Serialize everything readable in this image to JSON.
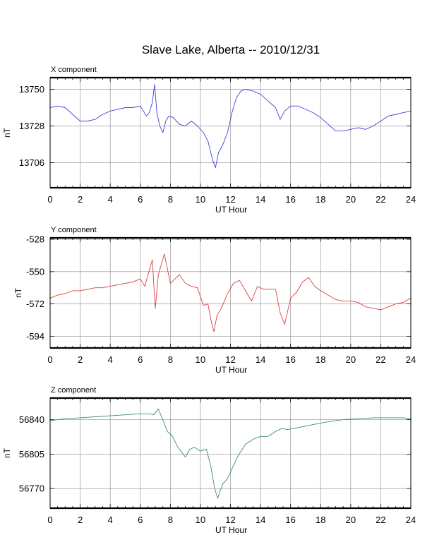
{
  "title": "Slave Lake, Alberta -- 2010/12/31",
  "chart_data": [
    {
      "type": "line",
      "panel_label": "X component",
      "xlabel": "UT Hour",
      "ylabel": "nT",
      "xlim": [
        0,
        24
      ],
      "ylim": [
        13691,
        13757
      ],
      "grid": true,
      "x_ticks": [
        0,
        2,
        4,
        6,
        8,
        10,
        12,
        14,
        16,
        18,
        20,
        22,
        24
      ],
      "x_tick_labels": [
        "0",
        "2",
        "4",
        "6",
        "8",
        "10",
        "12",
        "14",
        "16",
        "18",
        "20",
        "22",
        "24"
      ],
      "y_ticks": [
        13750,
        13728,
        13706
      ],
      "y_tick_labels": [
        "13750",
        "13728",
        "13706"
      ],
      "series_color": "#3f3fdf",
      "x": [
        0,
        0.5,
        1.0,
        1.5,
        2.0,
        2.5,
        3.0,
        3.5,
        4.0,
        4.5,
        5.0,
        5.5,
        6.0,
        6.4,
        6.6,
        6.8,
        6.95,
        7.1,
        7.3,
        7.5,
        7.7,
        7.9,
        8.2,
        8.6,
        9.0,
        9.4,
        9.8,
        10.2,
        10.5,
        10.8,
        11.0,
        11.2,
        11.5,
        11.8,
        12.1,
        12.4,
        12.7,
        13.0,
        13.5,
        14.0,
        14.5,
        15.0,
        15.3,
        15.6,
        16.0,
        16.5,
        17.0,
        17.5,
        18.0,
        18.5,
        19.0,
        19.5,
        20.0,
        20.5,
        21.0,
        21.5,
        22.0,
        22.5,
        23.0,
        23.5,
        24.0
      ],
      "values": [
        13739,
        13740,
        13739,
        13735,
        13731,
        13731,
        13732,
        13735,
        13737,
        13738,
        13739,
        13739,
        13740,
        13734,
        13736,
        13742,
        13753,
        13736,
        13728,
        13724,
        13731,
        13734,
        13733,
        13729,
        13728,
        13731,
        13728,
        13724,
        13719,
        13708,
        13703,
        13712,
        13717,
        13724,
        13736,
        13745,
        13749,
        13750,
        13749,
        13747,
        13743,
        13739,
        13732,
        13737,
        13740,
        13740,
        13738,
        13736,
        13733,
        13729,
        13725,
        13725,
        13726,
        13727,
        13726,
        13728,
        13731,
        13734,
        13735,
        13736,
        13737
      ]
    },
    {
      "type": "line",
      "panel_label": "Y component",
      "xlabel": "UT Hour",
      "ylabel": "nT",
      "xlim": [
        0,
        24
      ],
      "ylim": [
        -602,
        -527
      ],
      "grid": true,
      "x_ticks": [
        0,
        2,
        4,
        6,
        8,
        10,
        12,
        14,
        16,
        18,
        20,
        22,
        24
      ],
      "x_tick_labels": [
        "0",
        "2",
        "4",
        "6",
        "8",
        "10",
        "12",
        "14",
        "16",
        "18",
        "20",
        "22",
        "24"
      ],
      "y_ticks": [
        -528,
        -550,
        -572,
        -594
      ],
      "y_tick_labels": [
        "-528",
        "-550",
        "-572",
        "-594"
      ],
      "series_color": "#df3f3f",
      "x": [
        0,
        0.5,
        1.0,
        1.5,
        2.0,
        2.5,
        3.0,
        3.5,
        4.0,
        4.5,
        5.0,
        5.5,
        6.0,
        6.3,
        6.6,
        6.8,
        7.0,
        7.2,
        7.4,
        7.6,
        7.8,
        8.0,
        8.3,
        8.6,
        9.0,
        9.4,
        9.8,
        10.2,
        10.5,
        10.7,
        10.9,
        11.1,
        11.4,
        11.8,
        12.2,
        12.6,
        13.0,
        13.4,
        13.8,
        14.2,
        14.6,
        15.0,
        15.3,
        15.6,
        16.0,
        16.4,
        16.8,
        17.2,
        17.6,
        18.0,
        18.5,
        19.0,
        19.5,
        20.0,
        20.5,
        21.0,
        21.5,
        22.0,
        22.5,
        23.0,
        23.5,
        24.0
      ],
      "values": [
        -568,
        -566,
        -565,
        -563,
        -563,
        -562,
        -561,
        -561,
        -560,
        -559,
        -558,
        -557,
        -555,
        -560,
        -549,
        -542,
        -575,
        -552,
        -545,
        -538,
        -548,
        -558,
        -555,
        -552,
        -558,
        -560,
        -561,
        -573,
        -572,
        -583,
        -591,
        -580,
        -575,
        -565,
        -558,
        -556,
        -563,
        -570,
        -560,
        -562,
        -562,
        -562,
        -578,
        -586,
        -568,
        -564,
        -557,
        -554,
        -560,
        -563,
        -566,
        -569,
        -570,
        -570,
        -571,
        -574,
        -575,
        -576,
        -574,
        -572,
        -571,
        -568
      ]
    },
    {
      "type": "line",
      "panel_label": "Z component",
      "xlabel": "UT Hour",
      "ylabel": "nT",
      "xlim": [
        0,
        24
      ],
      "ylim": [
        56750,
        56862
      ],
      "grid": true,
      "x_ticks": [
        0,
        2,
        4,
        6,
        8,
        10,
        12,
        14,
        16,
        18,
        20,
        22,
        24
      ],
      "x_tick_labels": [
        "0",
        "2",
        "4",
        "6",
        "8",
        "10",
        "12",
        "14",
        "16",
        "18",
        "20",
        "22",
        "24"
      ],
      "y_ticks": [
        56840,
        56805,
        56770
      ],
      "y_tick_labels": [
        "56840",
        "56805",
        "56770"
      ],
      "series_color": "#3f8f5f",
      "x": [
        0,
        1,
        2,
        3,
        4,
        5,
        6,
        6.6,
        6.9,
        7.2,
        7.5,
        7.8,
        8.1,
        8.5,
        9.0,
        9.3,
        9.6,
        10.0,
        10.4,
        10.7,
        10.95,
        11.15,
        11.3,
        11.5,
        11.8,
        12.1,
        12.5,
        13.0,
        13.5,
        14.0,
        14.5,
        15.0,
        15.4,
        15.8,
        16.5,
        17.5,
        18.5,
        19.5,
        20.5,
        21.5,
        22.5,
        23.5,
        24.0
      ],
      "values": [
        56839,
        56841,
        56842,
        56843,
        56844,
        56845,
        56846,
        56846,
        56845,
        56851,
        56840,
        56828,
        56824,
        56812,
        56802,
        56810,
        56812,
        56808,
        56810,
        56792,
        56770,
        56760,
        56767,
        56775,
        56780,
        56790,
        56803,
        56815,
        56820,
        56823,
        56823,
        56828,
        56831,
        56830,
        56832,
        56835,
        56838,
        56840,
        56841,
        56842,
        56842,
        56842,
        56841
      ]
    }
  ]
}
